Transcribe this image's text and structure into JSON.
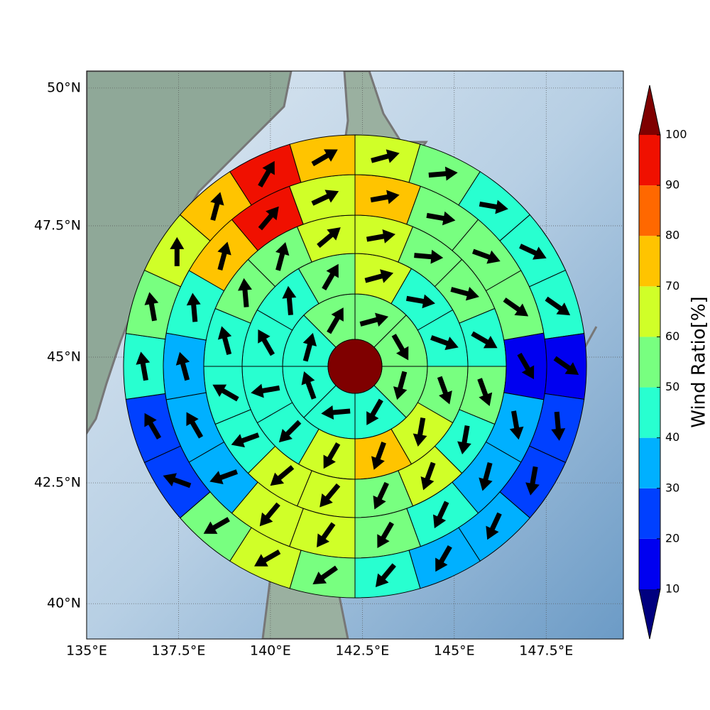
{
  "chart_data": {
    "type": "rose",
    "projection": "mercator",
    "xlim": [
      135,
      149.6
    ],
    "ylim": [
      39.25,
      50.3
    ],
    "xticks": [
      {
        "value": 135,
        "label": "135°E"
      },
      {
        "value": 137.5,
        "label": "137.5°E"
      },
      {
        "value": 140,
        "label": "140°E"
      },
      {
        "value": 142.5,
        "label": "142.5°E"
      },
      {
        "value": 145,
        "label": "145°E"
      },
      {
        "value": 147.5,
        "label": "147.5°E"
      }
    ],
    "yticks": [
      {
        "value": 40,
        "label": "40°N"
      },
      {
        "value": 42.5,
        "label": "42.5°N"
      },
      {
        "value": 45,
        "label": "45°N"
      },
      {
        "value": 47.5,
        "label": "47.5°N"
      },
      {
        "value": 50,
        "label": "50°N"
      }
    ],
    "grid": true,
    "colorbar": {
      "label": "Wind Ratio[%]",
      "levels": [
        10,
        20,
        30,
        40,
        50,
        60,
        70,
        80,
        90,
        100
      ],
      "colors": [
        "#00007f",
        "#0000f0",
        "#0040ff",
        "#00b0ff",
        "#28ffd0",
        "#78ff80",
        "#d0ff28",
        "#ffc400",
        "#ff6800",
        "#f01000",
        "#7f0000"
      ]
    },
    "rings": [
      {
        "values": [
          55,
          55,
          55,
          45,
          45,
          45,
          45,
          55
        ],
        "directions": [
          75,
          150,
          195,
          210,
          265,
          340,
          15,
          30
        ]
      },
      {
        "values": [
          65,
          45,
          45,
          55,
          65,
          75,
          65,
          45,
          45,
          45,
          45,
          55
        ],
        "directions": [
          75,
          100,
          110,
          160,
          190,
          200,
          210,
          225,
          260,
          330,
          355,
          30
        ]
      },
      {
        "values": [
          65,
          55,
          55,
          45,
          55,
          45,
          65,
          55,
          65,
          65,
          45,
          45,
          45,
          55,
          55,
          65
        ],
        "directions": [
          80,
          95,
          105,
          120,
          160,
          190,
          200,
          205,
          220,
          230,
          250,
          300,
          345,
          355,
          15,
          50
        ]
      },
      {
        "values": [
          75,
          55,
          55,
          55,
          15,
          35,
          35,
          45,
          55,
          65,
          65,
          35,
          35,
          35,
          45,
          75,
          95,
          65
        ],
        "directions": [
          80,
          100,
          110,
          125,
          150,
          170,
          195,
          205,
          210,
          215,
          220,
          250,
          330,
          345,
          355,
          15,
          40,
          65
        ]
      },
      {
        "values": [
          65,
          55,
          45,
          45,
          45,
          15,
          25,
          25,
          35,
          35,
          45,
          55,
          65,
          55,
          25,
          25,
          45,
          55,
          65,
          75,
          95,
          75
        ],
        "directions": [
          75,
          85,
          100,
          115,
          125,
          125,
          175,
          190,
          205,
          210,
          220,
          235,
          240,
          240,
          290,
          330,
          350,
          350,
          0,
          15,
          30,
          60
        ]
      }
    ]
  }
}
